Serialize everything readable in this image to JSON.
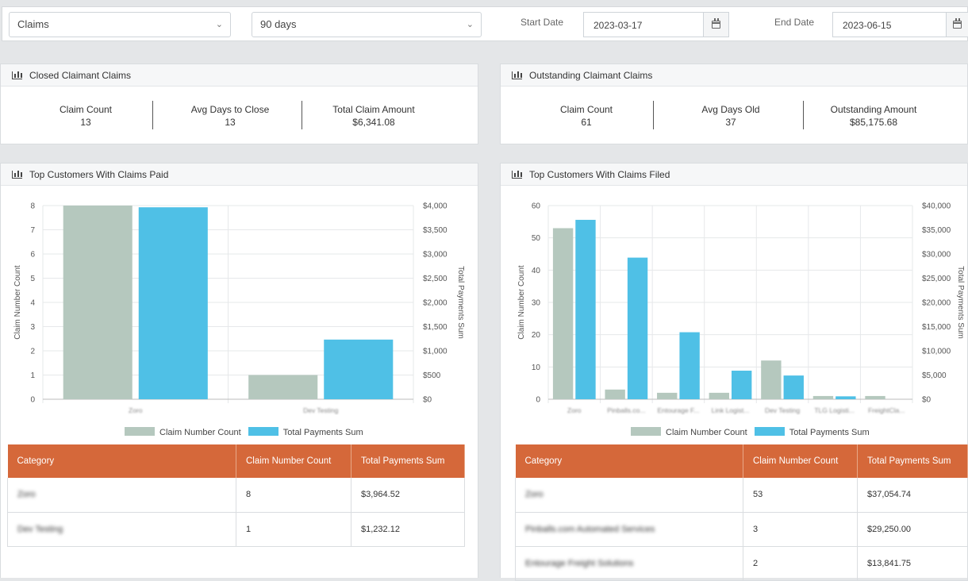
{
  "filters": {
    "type_value": "Claims",
    "range_value": "90 days",
    "start_label": "Start Date",
    "start_value": "2023-03-17",
    "end_label": "End Date",
    "end_value": "2023-06-15"
  },
  "closed": {
    "title": "Closed Claimant Claims",
    "kpis": [
      {
        "label": "Claim Count",
        "value": "13"
      },
      {
        "label": "Avg Days to Close",
        "value": "13"
      },
      {
        "label": "Total Claim Amount",
        "value": "$6,341.08"
      }
    ]
  },
  "outstanding": {
    "title": "Outstanding Claimant Claims",
    "kpis": [
      {
        "label": "Claim Count",
        "value": "61"
      },
      {
        "label": "Avg Days Old",
        "value": "37"
      },
      {
        "label": "Outstanding Amount",
        "value": "$85,175.68"
      }
    ]
  },
  "paid": {
    "title": "Top Customers With Claims Paid",
    "table": {
      "headers": [
        "Category",
        "Claim Number Count",
        "Total Payments Sum"
      ],
      "rows": [
        [
          "Zoro",
          "8",
          "$3,964.52"
        ],
        [
          "Dev Testing",
          "1",
          "$1,232.12"
        ]
      ]
    }
  },
  "filed": {
    "title": "Top Customers With Claims Filed",
    "table": {
      "headers": [
        "Category",
        "Claim Number Count",
        "Total Payments Sum"
      ],
      "rows": [
        [
          "Zoro",
          "53",
          "$37,054.74"
        ],
        [
          "Pinballs.com Automated Services",
          "3",
          "$29,250.00"
        ],
        [
          "Entourage Freight Solutions",
          "2",
          "$13,841.75"
        ]
      ]
    }
  },
  "colors": {
    "count": "#b5c8be",
    "sum": "#4fc0e6",
    "table_head": "#d5683a"
  },
  "chart_data": [
    {
      "type": "bar",
      "categories": [
        "Zoro",
        "Dev Testing"
      ],
      "series": [
        {
          "name": "Claim Number Count",
          "axis": "left",
          "values": [
            8,
            1
          ]
        },
        {
          "name": "Total Payments Sum",
          "axis": "right",
          "values": [
            3964.52,
            1232.12
          ]
        }
      ],
      "ylabel": "Claim Number Count",
      "y2label": "Total Payments Sum",
      "ylim": [
        0,
        8
      ],
      "y2lim": [
        0,
        4000
      ],
      "yticks": [
        "0",
        "1",
        "2",
        "3",
        "4",
        "5",
        "6",
        "7",
        "8"
      ],
      "y2ticks": [
        "$0",
        "$500",
        "$1,000",
        "$1,500",
        "$2,000",
        "$2,500",
        "$3,000",
        "$3,500",
        "$4,000"
      ],
      "legend": "bottom"
    },
    {
      "type": "bar",
      "categories": [
        "Zoro",
        "Pinballs.co...",
        "Entourage F...",
        "Link Logist...",
        "Dev Testing",
        "TLG Logisti...",
        "FreightCla..."
      ],
      "series": [
        {
          "name": "Claim Number Count",
          "axis": "left",
          "values": [
            53,
            3,
            2,
            2,
            12,
            1,
            1
          ]
        },
        {
          "name": "Total Payments Sum",
          "axis": "right",
          "values": [
            37054.74,
            29250,
            13841.75,
            5900,
            4900,
            600,
            0
          ]
        }
      ],
      "ylabel": "Claim Number Count",
      "y2label": "Total Payments Sum",
      "ylim": [
        0,
        60
      ],
      "y2lim": [
        0,
        40000
      ],
      "yticks": [
        "0",
        "10",
        "20",
        "30",
        "40",
        "50",
        "60"
      ],
      "y2ticks": [
        "$0",
        "$5,000",
        "$10,000",
        "$15,000",
        "$20,000",
        "$25,000",
        "$30,000",
        "$35,000",
        "$40,000"
      ],
      "legend": "bottom"
    }
  ]
}
